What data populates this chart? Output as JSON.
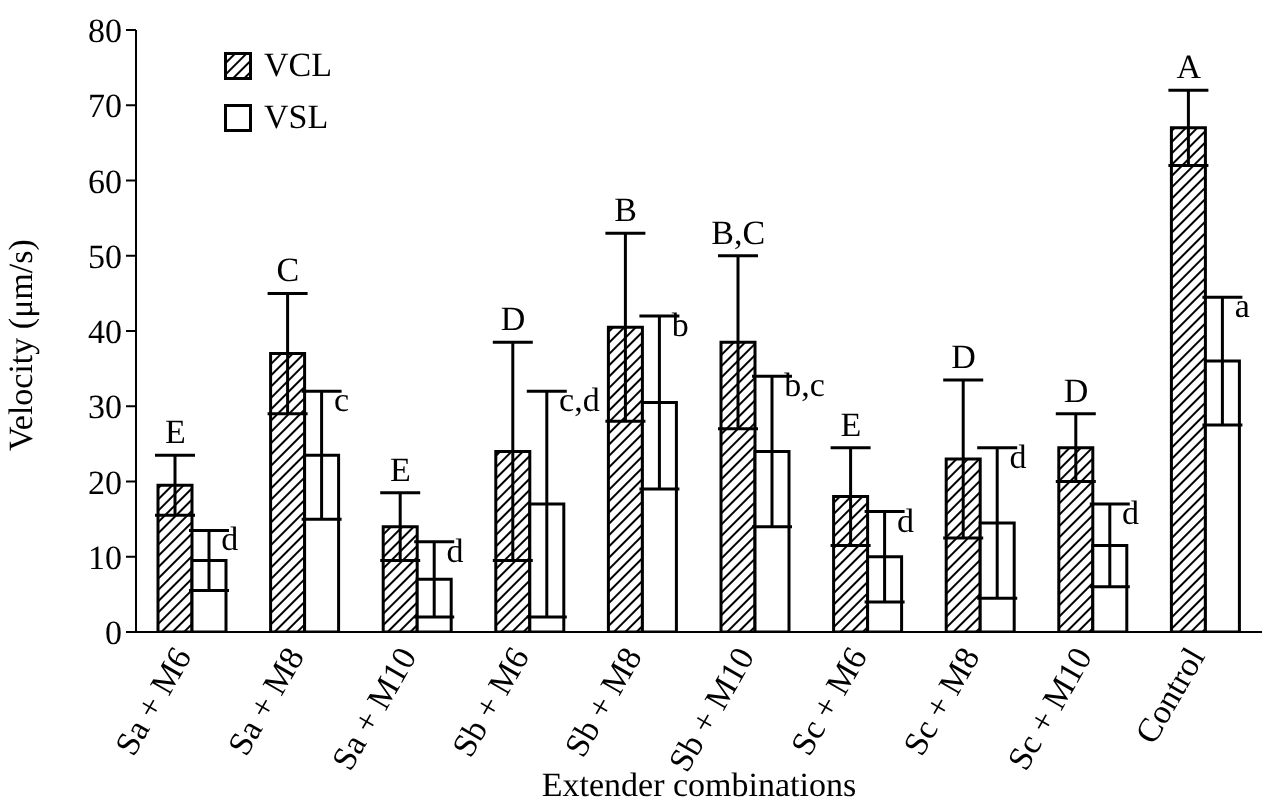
{
  "chart_data": {
    "type": "bar",
    "xlabel": "Extender combinations",
    "ylabel": "Velocity (μm/s)",
    "categories": [
      "Sa + M6",
      "Sa + M8",
      "Sa + M10",
      "Sb + M6",
      "Sb + M8",
      "Sb + M10",
      "Sc + M6",
      "Sc + M8",
      "Sc + M10",
      "Control"
    ],
    "series": [
      {
        "name": "VCL",
        "color": "#000000",
        "values": [
          19.5,
          37,
          14,
          24,
          40.5,
          38.5,
          18,
          23,
          24.5,
          67
        ],
        "errors": [
          4,
          8,
          4.5,
          14.5,
          12.5,
          11.5,
          6.5,
          10.5,
          4.5,
          5
        ]
      },
      {
        "name": "VSL",
        "color": "#ffffff",
        "values": [
          9.5,
          23.5,
          7,
          17,
          30.5,
          24,
          10,
          14.5,
          11.5,
          36
        ],
        "errors": [
          4,
          8.5,
          5,
          15,
          11.5,
          10,
          6,
          10,
          5.5,
          8.5
        ]
      }
    ],
    "ylim": [
      0,
      80
    ],
    "yticks": [
      0,
      10,
      20,
      30,
      40,
      50,
      60,
      70,
      80
    ],
    "legend": "top left",
    "annotations": [
      {
        "text": "E",
        "x": "Sa + M6",
        "y": 23.5
      },
      {
        "text": "C",
        "x": "Sa + M8",
        "y": 45
      },
      {
        "text": "E",
        "x": "Sa + M10",
        "y": 18.5
      },
      {
        "text": "D",
        "x": "Sb + M6",
        "y": 38.5
      },
      {
        "text": "B",
        "x": "Sb + M8",
        "y": 53
      },
      {
        "text": "B,C",
        "x": "Sb + M10",
        "y": 50
      },
      {
        "text": "E",
        "x": "Sc + M6",
        "y": 24.5
      },
      {
        "text": "D",
        "x": "Sc + M8",
        "y": 33.5
      },
      {
        "text": "D",
        "x": "Sc + M10",
        "y": 29
      },
      {
        "text": "A",
        "x": "Control",
        "y": 72
      },
      {
        "text": "d",
        "x": "Sa + M6",
        "y": 13.5
      },
      {
        "text": "c",
        "x": "Sa + M8",
        "y": 32
      },
      {
        "text": "d",
        "x": "Sa + M10",
        "y": 12
      },
      {
        "text": "c,d",
        "x": "Sb + M6",
        "y": 32
      },
      {
        "text": "b",
        "x": "Sb + M8",
        "y": 42
      },
      {
        "text": "b,c",
        "x": "Sb + M10",
        "y": 34
      },
      {
        "text": "d",
        "x": "Sc + M6",
        "y": 16
      },
      {
        "text": "d",
        "x": "Sc + M8",
        "y": 24.5
      },
      {
        "text": "d",
        "x": "Sc + M10",
        "y": 17
      },
      {
        "text": "a",
        "x": "Control",
        "y": 44.5
      }
    ]
  }
}
